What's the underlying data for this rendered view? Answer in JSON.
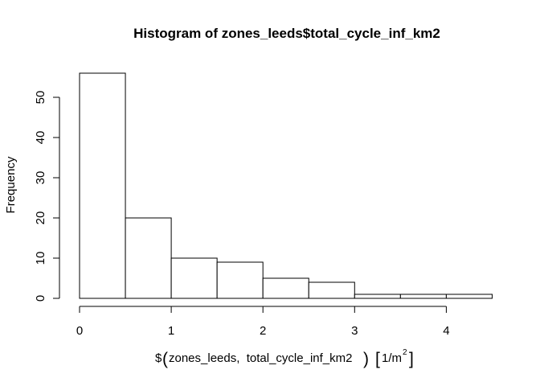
{
  "chart_data": {
    "type": "bar",
    "title": "Histogram of zones_leeds$total_cycle_inf_km2",
    "xlabel": {
      "prefix": "$",
      "args": "zones_leeds,  total_cycle_inf_km2",
      "unit_base": "1/m",
      "unit_exp": "2"
    },
    "ylabel": "Frequency",
    "bins": [
      [
        0.0,
        0.5
      ],
      [
        0.5,
        1.0
      ],
      [
        1.0,
        1.5
      ],
      [
        1.5,
        2.0
      ],
      [
        2.0,
        2.5
      ],
      [
        2.5,
        3.0
      ],
      [
        3.0,
        3.5
      ],
      [
        3.5,
        4.0
      ],
      [
        4.0,
        4.5
      ]
    ],
    "values": [
      56,
      20,
      10,
      9,
      5,
      4,
      1,
      1,
      1
    ],
    "xlim": [
      0,
      4.5
    ],
    "ylim": [
      0,
      56
    ],
    "xticks": [
      0,
      1,
      2,
      3,
      4
    ],
    "xtick_labels": [
      "0",
      "1",
      "2",
      "3",
      "4"
    ],
    "yticks": [
      0,
      10,
      20,
      30,
      40,
      50
    ],
    "ytick_labels": [
      "0",
      "10",
      "20",
      "30",
      "40",
      "50"
    ],
    "grid": false,
    "bar_fill": "#ffffff",
    "bar_stroke": "#000000"
  }
}
